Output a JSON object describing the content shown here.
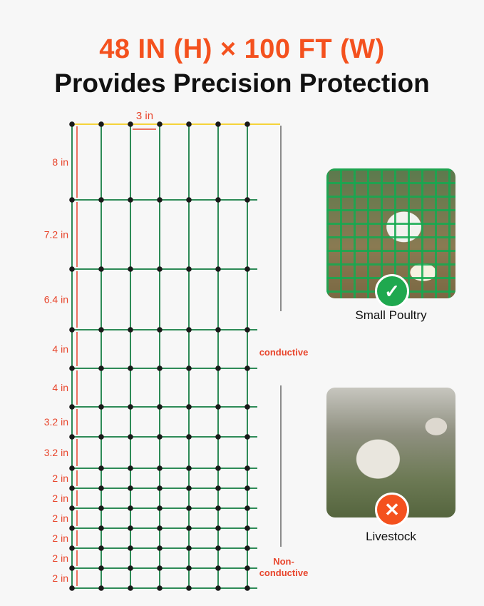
{
  "header": {
    "title": "48 IN (H) × 100 FT (W)",
    "subtitle": "Provides Precision Protection"
  },
  "diagram": {
    "column_spacing_label": "3 in",
    "column_count": 7,
    "row_spacings_in": [
      8,
      7.2,
      6.4,
      4,
      4,
      3.2,
      3.2,
      2,
      2,
      2,
      2,
      2,
      2
    ],
    "row_labels": [
      "8 in",
      "7.2 in",
      "6.4 in",
      "4 in",
      "4 in",
      "3.2 in",
      "3.2 in",
      "2 in",
      "2 in",
      "2 in",
      "2 in",
      "2 in",
      "2 in"
    ],
    "conductive_label": "conductive",
    "non_conductive_label": "Non-\nconductive",
    "colors": {
      "wire": "#2e8b57",
      "top_wire": "#f5d33b",
      "dimension": "#e8452c",
      "knot": "#1a1a1a",
      "label": "#e8452c"
    }
  },
  "cards": [
    {
      "label": "Small Poultry",
      "status": "check-icon",
      "color": "#1fa84f"
    },
    {
      "label": "Livestock",
      "status": "cross-icon",
      "color": "#f4511e"
    }
  ]
}
